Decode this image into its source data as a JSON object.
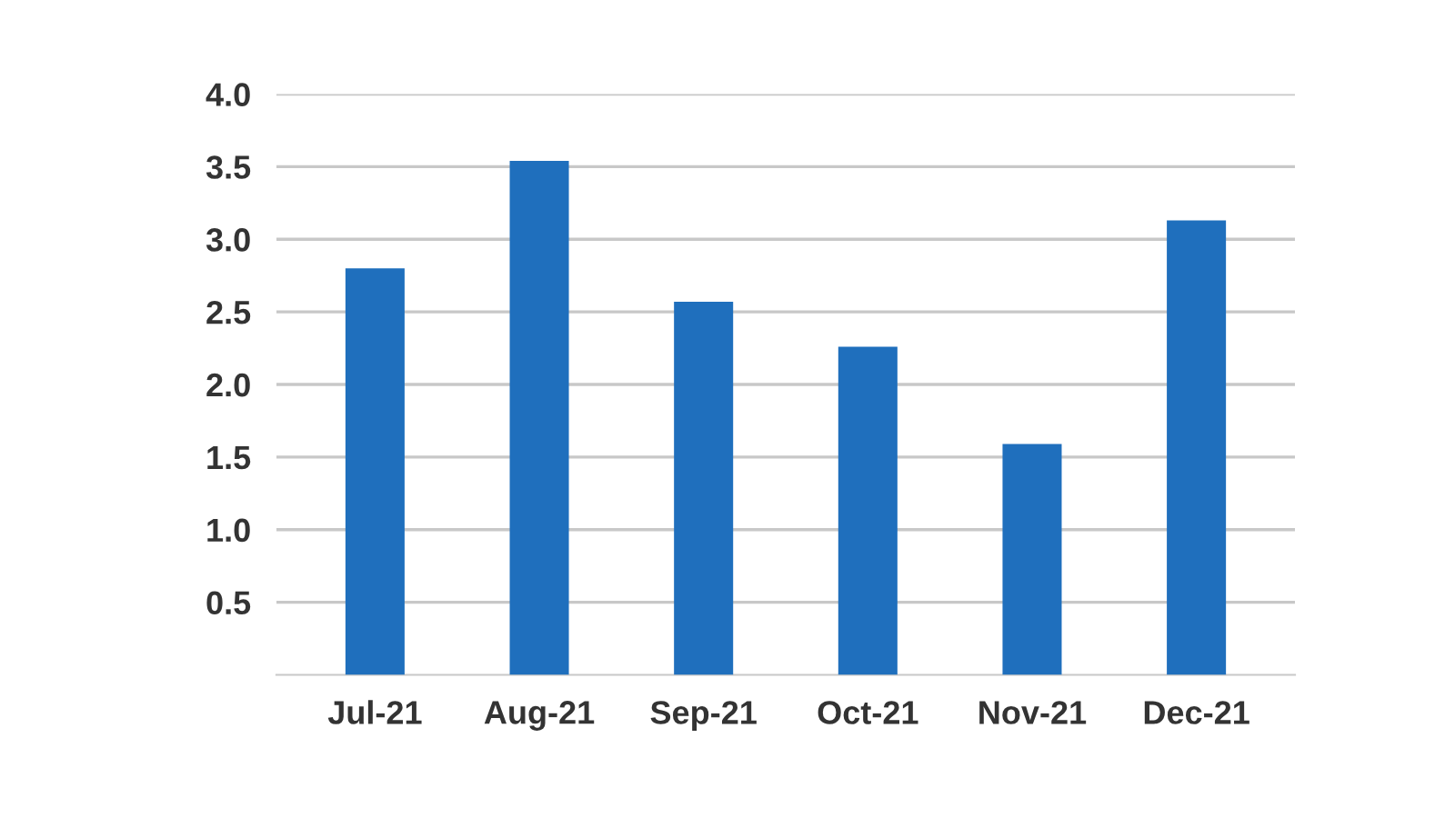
{
  "chart_data": {
    "type": "bar",
    "categories": [
      "Jul-21",
      "Aug-21",
      "Sep-21",
      "Oct-21",
      "Nov-21",
      "Dec-21"
    ],
    "values": [
      2.8,
      3.54,
      2.57,
      2.26,
      1.59,
      3.13
    ],
    "color": "#1f6fbd",
    "ylim": [
      0,
      4.0
    ],
    "yticks": [
      {
        "value": 0.5,
        "label": "0.5"
      },
      {
        "value": 1.0,
        "label": "1.0"
      },
      {
        "value": 1.5,
        "label": "1.5"
      },
      {
        "value": 2.0,
        "label": "2.0"
      },
      {
        "value": 2.5,
        "label": "2.5"
      },
      {
        "value": 3.0,
        "label": "3.0"
      },
      {
        "value": 3.5,
        "label": "3.5"
      },
      {
        "value": 4.0,
        "label": "4.0"
      }
    ],
    "grid": "y"
  }
}
